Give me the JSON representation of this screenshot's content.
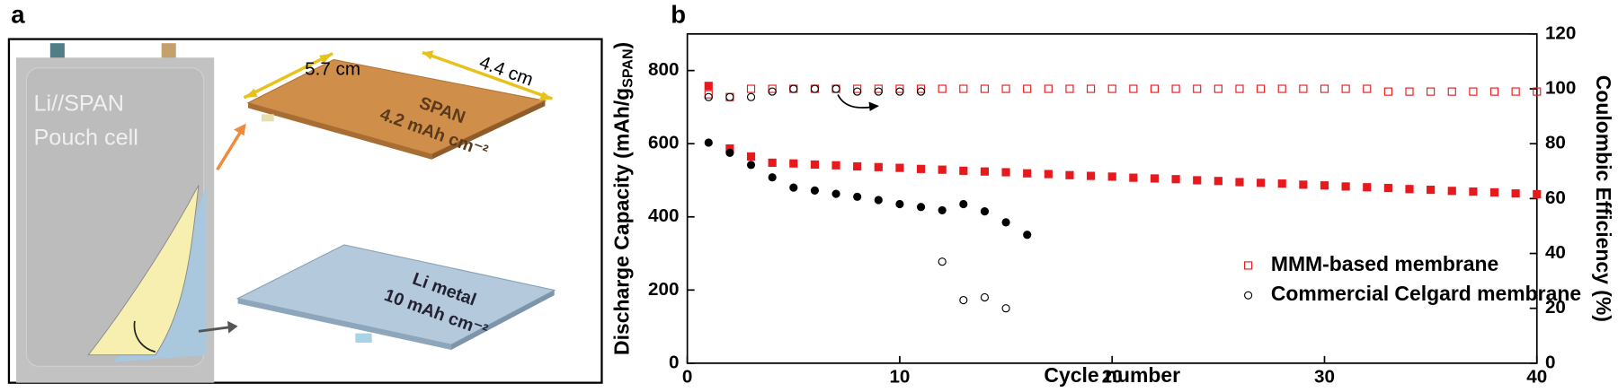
{
  "panel_a": {
    "label": "a",
    "pouch_line1": "Li//SPAN",
    "pouch_line2": "Pouch cell",
    "length": "5.7 cm",
    "width": "4.4 cm",
    "cathode_name": "SPAN",
    "cathode_loading": "4.2 mAh cm⁻²",
    "anode_name": "Li metal",
    "anode_loading": "10 mAh cm⁻²"
  },
  "chart_data": {
    "type": "scatter",
    "panel_label": "b",
    "xlabel": "Cycle number",
    "ylabel": [
      "Discharge Capacity (mAh/g",
      "SPAN",
      ")"
    ],
    "y2label": "Coulombic Efficiency (%)",
    "xlim": [
      0,
      40
    ],
    "xticks": [
      0,
      10,
      20,
      30,
      40
    ],
    "ylim": [
      0,
      900
    ],
    "yticks": [
      0,
      200,
      400,
      600,
      800
    ],
    "y2lim": [
      0,
      120
    ],
    "y2ticks": [
      0,
      20,
      40,
      60,
      80,
      100,
      120
    ],
    "legend": "lower right",
    "series": [
      {
        "color": "#e8191c",
        "marker": "square",
        "filled": true,
        "x": [
          1,
          2,
          3,
          4,
          5,
          6,
          7,
          8,
          9,
          10,
          11,
          12,
          13,
          14,
          15,
          16,
          17,
          18,
          19,
          20,
          21,
          22,
          23,
          24,
          25,
          26,
          27,
          28,
          29,
          30,
          31,
          32,
          33,
          34,
          35,
          36,
          37,
          38,
          39,
          40
        ],
        "values": [
          758,
          587,
          565,
          548,
          546,
          543,
          541,
          538,
          536,
          534,
          531,
          529,
          526,
          524,
          522,
          519,
          517,
          514,
          512,
          510,
          507,
          505,
          503,
          500,
          498,
          495,
          493,
          491,
          488,
          486,
          483,
          481,
          479,
          476,
          474,
          471,
          469,
          467,
          464,
          462
        ]
      },
      {
        "color": "#000000",
        "marker": "circle",
        "filled": true,
        "x": [
          1,
          2,
          3,
          4,
          5,
          6,
          7,
          8,
          9,
          10,
          11,
          12,
          13,
          14,
          15,
          16
        ],
        "values": [
          603,
          575,
          542,
          508,
          480,
          472,
          463,
          455,
          446,
          435,
          427,
          418,
          435,
          415,
          385,
          351
        ]
      },
      {
        "name": "MMM-based membrane",
        "color": "#e8191c",
        "marker": "square",
        "filled": false,
        "axis": "y2",
        "x": [
          1,
          2,
          3,
          4,
          5,
          6,
          7,
          8,
          9,
          10,
          11,
          12,
          13,
          14,
          15,
          16,
          17,
          18,
          19,
          20,
          21,
          22,
          23,
          24,
          25,
          26,
          27,
          28,
          29,
          30,
          31,
          32,
          33,
          34,
          35,
          36,
          37,
          38,
          39,
          40
        ],
        "values": [
          98,
          97,
          100,
          100,
          100,
          100,
          100,
          100,
          100,
          100,
          100,
          100,
          100,
          100,
          100,
          100,
          100,
          100,
          100,
          100,
          100,
          100,
          100,
          100,
          100,
          100,
          100,
          100,
          100,
          100,
          100,
          100,
          99,
          99,
          99,
          99,
          99,
          99,
          99,
          99
        ]
      },
      {
        "name": "Commercial Celgard membrane",
        "color": "#000000",
        "marker": "circle",
        "filled": false,
        "axis": "y2",
        "x": [
          1,
          2,
          3,
          4,
          5,
          6,
          7,
          8,
          9,
          10,
          11,
          12,
          13,
          14,
          15
        ],
        "values": [
          97,
          97,
          97,
          99,
          100,
          100,
          100,
          99,
          99,
          99,
          99,
          37,
          23,
          24,
          20
        ]
      }
    ]
  }
}
